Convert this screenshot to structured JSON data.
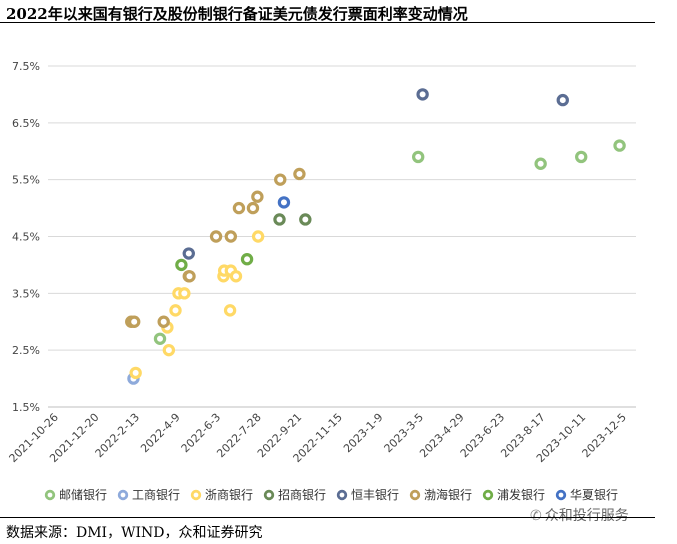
{
  "title": "2022年以来国有银行及股份制银行备证美元债发行票面利率变动情况",
  "source": "数据来源：DMI，WIND，众和证券研究",
  "watermark": "众和投行服务",
  "chart_data": {
    "type": "scatter",
    "title": "",
    "xlabel": "",
    "ylabel": "",
    "x_ticks": [
      "2021-10-26",
      "2021-12-20",
      "2022-2-13",
      "2022-4-9",
      "2022-6-3",
      "2022-7-28",
      "2022-9-21",
      "2022-11-15",
      "2023-1-9",
      "2023-3-5",
      "2023-4-29",
      "2023-6-23",
      "2023-8-17",
      "2023-10-11",
      "2023-12-5"
    ],
    "y_ticks": [
      "1.5%",
      "2.5%",
      "3.5%",
      "4.5%",
      "5.5%",
      "6.5%",
      "7.5%"
    ],
    "ylim": [
      1.5,
      7.5
    ],
    "xlim": [
      "2021-10-26",
      "2023-12-5"
    ],
    "grid": "horizontal",
    "legend_position": "bottom",
    "series": [
      {
        "name": "邮储银行",
        "color": "#92c47d",
        "points": [
          [
            "2022-3-16",
            2.7
          ],
          [
            "2023-3-1",
            5.9
          ],
          [
            "2023-8-14",
            5.78
          ],
          [
            "2023-10-8",
            5.9
          ],
          [
            "2023-11-29",
            6.1
          ]
        ]
      },
      {
        "name": "工商银行",
        "color": "#8eaadb",
        "points": [
          [
            "2022-2-8",
            2.0
          ]
        ]
      },
      {
        "name": "浙商银行",
        "color": "#ffd966",
        "points": [
          [
            "2022-2-11",
            2.1
          ],
          [
            "2022-3-28",
            2.5
          ],
          [
            "2022-3-26",
            2.9
          ],
          [
            "2022-4-6",
            3.2
          ],
          [
            "2022-4-10",
            3.5
          ],
          [
            "2022-4-18",
            3.5
          ],
          [
            "2022-6-10",
            3.8
          ],
          [
            "2022-6-11",
            3.9
          ],
          [
            "2022-6-20",
            3.9
          ],
          [
            "2022-6-27",
            3.8
          ],
          [
            "2022-6-19",
            3.2
          ],
          [
            "2022-7-27",
            4.5
          ]
        ]
      },
      {
        "name": "招商银行",
        "color": "#6a8a58",
        "points": [
          [
            "2022-8-25",
            4.8
          ],
          [
            "2022-9-29",
            4.8
          ]
        ]
      },
      {
        "name": "恒丰银行",
        "color": "#5b6d93",
        "points": [
          [
            "2022-4-24",
            4.2
          ],
          [
            "2023-3-7",
            7.0
          ],
          [
            "2023-9-13",
            6.9
          ]
        ]
      },
      {
        "name": "渤海银行",
        "color": "#bf9f5a",
        "points": [
          [
            "2022-2-5",
            3.0
          ],
          [
            "2022-2-9",
            3.0
          ],
          [
            "2022-3-21",
            3.0
          ],
          [
            "2022-4-24",
            3.8
          ],
          [
            "2022-4-25",
            3.8
          ],
          [
            "2022-5-31",
            4.5
          ],
          [
            "2022-6-20",
            4.5
          ],
          [
            "2022-7-1",
            5.0
          ],
          [
            "2022-7-20",
            5.0
          ],
          [
            "2022-7-26",
            5.2
          ],
          [
            "2022-8-26",
            5.5
          ],
          [
            "2022-9-21",
            5.6
          ]
        ]
      },
      {
        "name": "浦发银行",
        "color": "#70ad47",
        "points": [
          [
            "2022-4-14",
            4.0
          ],
          [
            "2022-7-12",
            4.1
          ]
        ]
      },
      {
        "name": "华夏银行",
        "color": "#4472c4",
        "points": [
          [
            "2022-8-31",
            5.1
          ]
        ]
      }
    ]
  }
}
